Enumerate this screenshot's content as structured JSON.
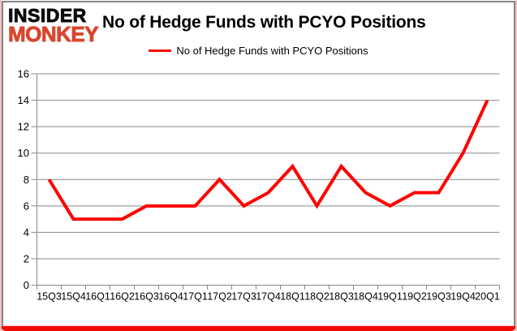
{
  "logo": {
    "line1": "INSIDER",
    "line2": "MONKEY"
  },
  "title": "No of Hedge Funds with PCYO Positions",
  "legend": {
    "label": "No of Hedge Funds with PCYO Positions"
  },
  "colors": {
    "line": "#fe0101",
    "grid": "#898989",
    "axis_text": "#000000",
    "logo_accent": "#d8462e",
    "bottom_bar": "#ee0b04",
    "frame_border": "#858585"
  },
  "chart_data": {
    "type": "line",
    "title": "No of Hedge Funds with PCYO Positions",
    "categories": [
      "15Q3",
      "15Q4",
      "16Q1",
      "16Q2",
      "16Q3",
      "16Q4",
      "17Q1",
      "17Q2",
      "17Q3",
      "17Q4",
      "18Q1",
      "18Q2",
      "18Q3",
      "18Q4",
      "19Q1",
      "19Q2",
      "19Q3",
      "19Q4",
      "20Q1"
    ],
    "series": [
      {
        "name": "No of Hedge Funds with PCYO Positions",
        "values": [
          8,
          5,
          5,
          5,
          6,
          6,
          6,
          8,
          6,
          7,
          9,
          6,
          9,
          7,
          6,
          7,
          7,
          10,
          14
        ]
      }
    ],
    "xlabel": "",
    "ylabel": "",
    "ylim": [
      0,
      16
    ],
    "ytick_step": 2,
    "grid": true,
    "legend_position": "top-center"
  }
}
